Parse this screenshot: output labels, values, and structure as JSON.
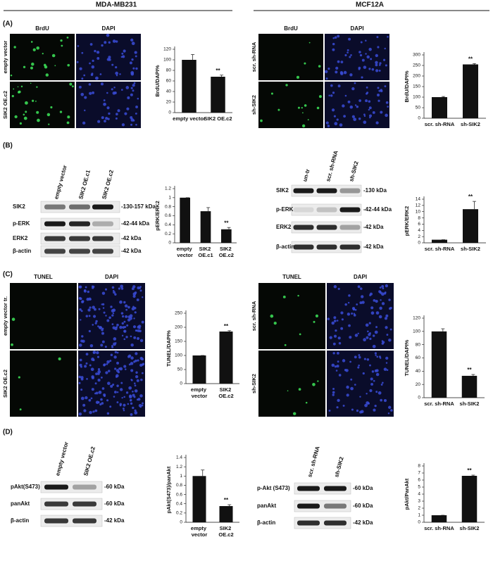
{
  "headers": [
    "MDA-MB231",
    "MCF12A"
  ],
  "panel_labels": [
    "(A)",
    "(B)",
    "(C)",
    "(D)"
  ],
  "micrographs": [
    {
      "columns": [
        "BrdU",
        "DAPI"
      ],
      "rows": [
        "empty vector",
        "SIK2 OE.c2"
      ]
    },
    {
      "columns": [
        "BrdU",
        "DAPI"
      ],
      "rows": [
        "scr. sh-RNA",
        "sh-SIK2"
      ]
    },
    {
      "columns": [
        "TUNEL",
        "DAPI"
      ],
      "rows": [
        "empty vector tr.",
        "SIK2 OE.c2"
      ]
    },
    {
      "columns": [
        "TUNEL",
        "DAPI"
      ],
      "rows": [
        "scr. sh-RNA",
        "sh-SIK2"
      ]
    }
  ],
  "blots": [
    {
      "lanes": [
        "empty vector",
        "SIK2 OE.c1",
        "SIK2 OE.c2"
      ],
      "rows": [
        {
          "name": "SIK2",
          "size": "-130-157 kDa"
        },
        {
          "name": "p-ERK",
          "size": "-42-44 kDa"
        },
        {
          "name": "ERK2",
          "size": "-42 kDa"
        },
        {
          "name": "β-actin",
          "size": "-42 kDa"
        }
      ]
    },
    {
      "lanes": [
        "un-tr",
        "scr. sh-RNA",
        "sh-SIK2"
      ],
      "rows": [
        {
          "name": "SIK2",
          "size": "-130 kDa"
        },
        {
          "name": "p-ERK",
          "size": "-42-44 kDa"
        },
        {
          "name": "ERK2",
          "size": "-42 kDa"
        },
        {
          "name": "β-actin",
          "size": "-42 kDa"
        }
      ]
    },
    {
      "lanes": [
        "empty vector",
        "SIK2 OE.c2"
      ],
      "rows": [
        {
          "name": "pAkt(S473)",
          "size": "-60 kDa"
        },
        {
          "name": "panAkt",
          "size": "-60 kDa"
        },
        {
          "name": "β-actin",
          "size": "-42 kDa"
        }
      ]
    },
    {
      "lanes": [
        "scr. sh-RNA",
        "sh-SIK2"
      ],
      "rows": [
        {
          "name": "p-Akt (S473)",
          "size": "-60 kDa"
        },
        {
          "name": "panAkt",
          "size": "-60 kDa"
        },
        {
          "name": "β-actin",
          "size": "-42 kDa"
        }
      ]
    }
  ],
  "chart_data": [
    {
      "type": "bar",
      "y_label": "BrdU/DAPI%",
      "categories": [
        "empty vector",
        "SIK2 OE.c2"
      ],
      "values": [
        100,
        68
      ],
      "errors": [
        10,
        3
      ],
      "annotation": "**",
      "color": "#111111",
      "ylim": [
        0,
        120
      ],
      "yticks": [
        0,
        20,
        40,
        60,
        80,
        100,
        120
      ]
    },
    {
      "type": "bar",
      "y_label": "BrdU/DAPI%",
      "categories": [
        "scr. sh-RNA",
        "sh-SIK2"
      ],
      "values": [
        100,
        255
      ],
      "errors": [
        3,
        4
      ],
      "annotation": "**",
      "color": "#111111",
      "ylim": [
        0,
        300
      ],
      "yticks": [
        0,
        50,
        100,
        150,
        200,
        250,
        300
      ]
    },
    {
      "type": "bar",
      "y_label": "pERK/ERK2",
      "categories": [
        "empty vector",
        "SIK2 OE.c1",
        "SIK2 OE.c2"
      ],
      "values": [
        1,
        0.7,
        0.3
      ],
      "errors": [
        0,
        0.08,
        0.04
      ],
      "annotation": "**",
      "color": "#111111",
      "ylim": [
        0,
        1.2
      ],
      "yticks": [
        0,
        0.2,
        0.4,
        0.6,
        0.8,
        1,
        1.2
      ]
    },
    {
      "type": "bar",
      "y_label": "pERK/ERK2",
      "categories": [
        "scr. sh-RNA",
        "sh-SIK2"
      ],
      "values": [
        1,
        10.8
      ],
      "errors": [
        0,
        2.5
      ],
      "annotation": "**",
      "color": "#111111",
      "ylim": [
        0,
        14
      ],
      "yticks": [
        0,
        2,
        4,
        6,
        8,
        10,
        12,
        14
      ]
    },
    {
      "type": "bar",
      "y_label": "TUNEL/DAPI%",
      "categories": [
        "empty vector",
        "SIK2 OE.c2"
      ],
      "values": [
        100,
        185
      ],
      "errors": [
        0,
        3
      ],
      "annotation": "**",
      "color": "#111111",
      "ylim": [
        0,
        250
      ],
      "yticks": [
        0,
        50,
        100,
        150,
        200,
        250
      ]
    },
    {
      "type": "bar",
      "y_label": "TUNEL/DAPI%",
      "categories": [
        "scr. sh-RNA",
        "sh-SIK2"
      ],
      "values": [
        100,
        33
      ],
      "errors": [
        4,
        2
      ],
      "annotation": "**",
      "color": "#111111",
      "ylim": [
        0,
        120
      ],
      "yticks": [
        0,
        20,
        40,
        60,
        80,
        100,
        120
      ]
    },
    {
      "type": "bar",
      "y_label": "pAkt(S473)/panAkt",
      "categories": [
        "empty vector",
        "SIK2 OE.c2"
      ],
      "values": [
        1,
        0.35
      ],
      "errors": [
        0.13,
        0.03
      ],
      "annotation": "**",
      "color": "#111111",
      "ylim": [
        0,
        1.4
      ],
      "yticks": [
        0,
        0.2,
        0.4,
        0.6,
        0.8,
        1,
        1.2,
        1.4
      ]
    },
    {
      "type": "bar",
      "y_label": "pAkt/PanAkt",
      "categories": [
        "scr. sh-RNA",
        "sh-SIK2"
      ],
      "values": [
        1,
        6.6
      ],
      "errors": [
        0,
        0.1
      ],
      "annotation": "**",
      "color": "#111111",
      "ylim": [
        0,
        8
      ],
      "yticks": [
        0,
        1,
        2,
        3,
        4,
        5,
        6,
        7,
        8
      ]
    }
  ]
}
